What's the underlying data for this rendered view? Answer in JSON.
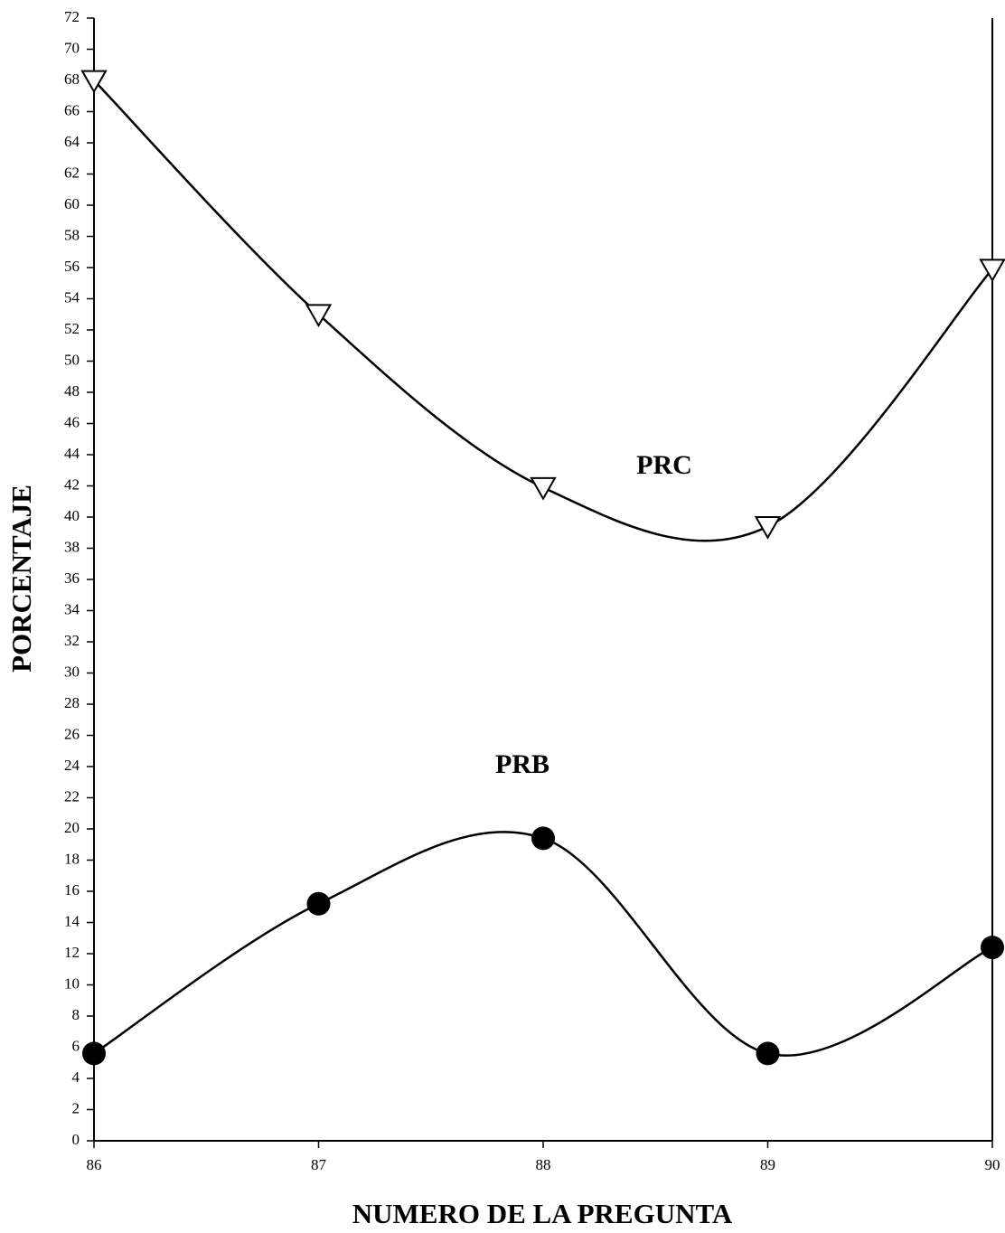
{
  "chart_data": {
    "type": "line",
    "x_label": "NUMERO DE LA PREGUNTA",
    "y_label": "PORCENTAJE",
    "x": [
      86,
      87,
      88,
      89,
      90
    ],
    "xlim": [
      86,
      90
    ],
    "xticks": [
      86,
      87,
      88,
      89,
      90
    ],
    "ylim": [
      0,
      72
    ],
    "yticks": [
      0,
      2,
      4,
      6,
      8,
      10,
      12,
      14,
      16,
      18,
      20,
      22,
      24,
      26,
      28,
      30,
      32,
      34,
      36,
      38,
      40,
      42,
      44,
      46,
      48,
      50,
      52,
      54,
      56,
      58,
      60,
      62,
      64,
      66,
      68,
      70,
      72
    ],
    "series": [
      {
        "name": "PRC",
        "color": "#000000",
        "marker": "triangle-down-open",
        "values": [
          68,
          53,
          41.9,
          39.4,
          55.9
        ]
      },
      {
        "name": "PRB",
        "color": "#000000",
        "marker": "circle-filled",
        "values": [
          5.6,
          15.2,
          19.4,
          5.6,
          12.4
        ]
      }
    ]
  }
}
